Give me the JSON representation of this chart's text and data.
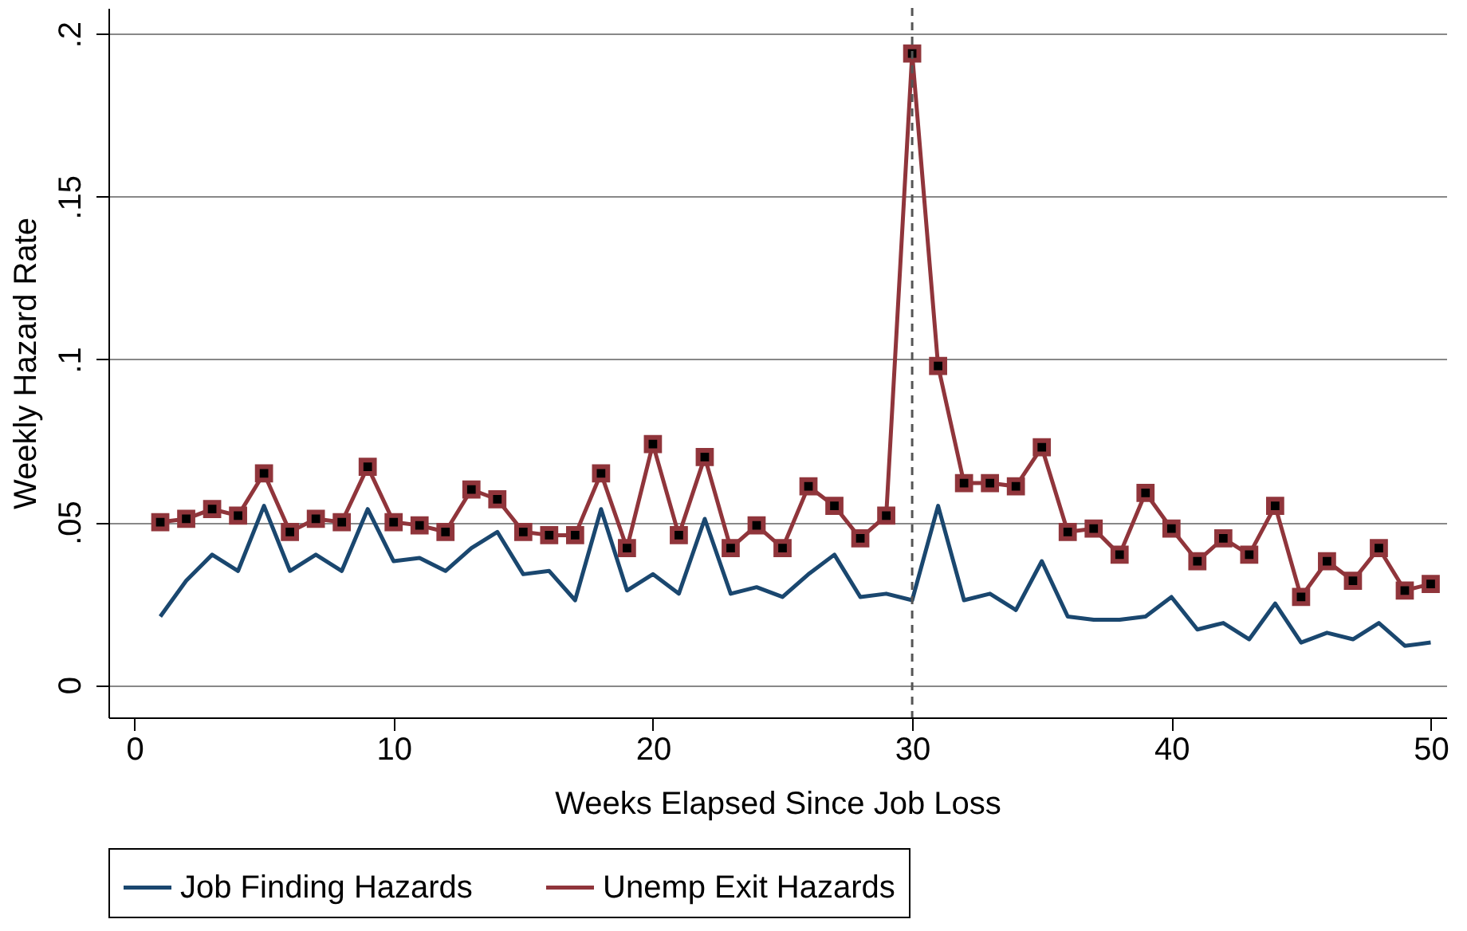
{
  "chart_data": {
    "type": "line",
    "xlabel": "Weeks Elapsed Since Job Loss",
    "ylabel": "Weekly Hazard Rate",
    "x": [
      1,
      2,
      3,
      4,
      5,
      6,
      7,
      8,
      9,
      10,
      11,
      12,
      13,
      14,
      15,
      16,
      17,
      18,
      19,
      20,
      21,
      22,
      23,
      24,
      25,
      26,
      27,
      28,
      29,
      30,
      31,
      32,
      33,
      34,
      35,
      36,
      37,
      38,
      39,
      40,
      41,
      42,
      43,
      44,
      45,
      46,
      47,
      48,
      49,
      50
    ],
    "series": [
      {
        "name": "Job Finding Hazards",
        "color": "#1a476f",
        "marker": "none",
        "values": [
          0.021,
          0.032,
          0.04,
          0.035,
          0.055,
          0.035,
          0.04,
          0.035,
          0.054,
          0.038,
          0.039,
          0.035,
          0.042,
          0.047,
          0.034,
          0.035,
          0.026,
          0.054,
          0.029,
          0.034,
          0.028,
          0.051,
          0.028,
          0.03,
          0.027,
          0.034,
          0.04,
          0.027,
          0.028,
          0.026,
          0.055,
          0.026,
          0.028,
          0.023,
          0.038,
          0.021,
          0.02,
          0.02,
          0.021,
          0.027,
          0.017,
          0.019,
          0.014,
          0.025,
          0.013,
          0.016,
          0.014,
          0.019,
          0.012,
          0.013
        ]
      },
      {
        "name": "Unemp Exit Hazards",
        "color": "#90353b",
        "marker": "square",
        "values": [
          0.05,
          0.051,
          0.054,
          0.052,
          0.065,
          0.047,
          0.051,
          0.05,
          0.067,
          0.05,
          0.049,
          0.047,
          0.06,
          0.057,
          0.047,
          0.046,
          0.046,
          0.065,
          0.042,
          0.074,
          0.046,
          0.07,
          0.042,
          0.049,
          0.042,
          0.061,
          0.055,
          0.045,
          0.052,
          0.194,
          0.098,
          0.062,
          0.062,
          0.061,
          0.073,
          0.047,
          0.048,
          0.04,
          0.059,
          0.048,
          0.038,
          0.045,
          0.04,
          0.055,
          0.027,
          0.038,
          0.032,
          0.042,
          0.029,
          0.031
        ]
      }
    ],
    "xlim": [
      -1,
      50.6
    ],
    "xticks": [
      0,
      10,
      20,
      30,
      40,
      50
    ],
    "ylim": [
      -0.01,
      0.208
    ],
    "yticks": [
      {
        "value": 0,
        "label": "0"
      },
      {
        "value": 0.05,
        "label": ".05"
      },
      {
        "value": 0.1,
        "label": ".1"
      },
      {
        "value": 0.15,
        "label": ".15"
      },
      {
        "value": 0.2,
        "label": ".2"
      }
    ],
    "ref_lines": [
      {
        "axis": "x",
        "value": 30,
        "line_style": "dashed",
        "color": "#555555"
      }
    ],
    "grid": "y",
    "legend": "bottom"
  }
}
